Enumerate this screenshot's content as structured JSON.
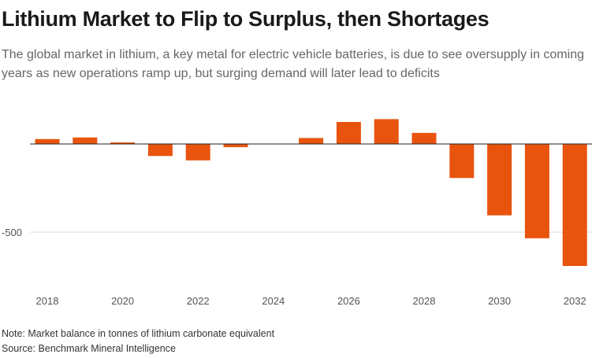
{
  "title": "Lithium Market to Flip to Surplus, then Shortages",
  "subtitle": "The global market in lithium, a key metal for electric vehicle batteries, is due to see oversupply in coming years as new operations ramp up, but surging demand will later lead to deficits",
  "note": "Note: Market balance in tonnes of lithium carbonate equivalent",
  "source": "Source: Benchmark Mineral Intelligence",
  "colors": {
    "bar": "#e8540e",
    "grid": "#d9d9d9",
    "zero_line": "#222222",
    "tick_text": "#555555"
  },
  "chart_data": {
    "type": "bar",
    "categories": [
      "2018",
      "2019",
      "2020",
      "2021",
      "2022",
      "2023",
      "2024",
      "2025",
      "2026",
      "2027",
      "2028",
      "2029",
      "2030",
      "2031",
      "2032"
    ],
    "values": [
      28,
      37,
      9,
      -68,
      -93,
      -18,
      0,
      34,
      125,
      141,
      63,
      -193,
      -405,
      -535,
      -692
    ],
    "x_tick_labels": [
      "2018",
      "2020",
      "2022",
      "2024",
      "2026",
      "2028",
      "2030",
      "2032"
    ],
    "y_tick_labels": [
      "-500"
    ],
    "y_ticks": [
      -500
    ],
    "ylim": [
      -750,
      160
    ],
    "grid": true,
    "legend": "none"
  }
}
